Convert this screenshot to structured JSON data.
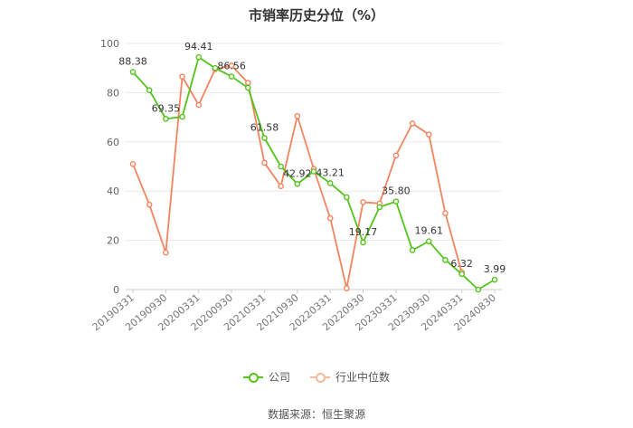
{
  "chart_data": {
    "type": "line",
    "title": "市销率历史分位（%）",
    "x_ticks": [
      "20190331",
      "20190930",
      "20200331",
      "20200930",
      "20210331",
      "20210930",
      "20220331",
      "20220930",
      "20230331",
      "20230930",
      "20240331",
      "20240830"
    ],
    "ylim": [
      0,
      100
    ],
    "y_ticks": [
      0,
      20,
      40,
      60,
      80,
      100
    ],
    "grid": true,
    "legend_position": "bottom",
    "series": [
      {
        "name": "公司",
        "color": "#52c41a",
        "values": [
          88.38,
          81,
          69.35,
          70.2,
          94.41,
          90,
          86.56,
          82,
          61.58,
          50,
          42.92,
          48,
          43.21,
          37.5,
          19.17,
          33.5,
          35.8,
          16,
          19.61,
          12,
          6.32,
          0,
          3.99
        ],
        "labels": {
          "0": "88.38",
          "2": "69.35",
          "4": "94.41",
          "6": "86.56",
          "8": "61.58",
          "10": "42.92",
          "12": "43.21",
          "14": "19.17",
          "16": "35.80",
          "18": "19.61",
          "20": "6.32",
          "22": "3.99"
        }
      },
      {
        "name": "行业中位数",
        "color": "#f4845f",
        "values": [
          51,
          34.5,
          15,
          86.5,
          75,
          89.5,
          91,
          84,
          51.5,
          42,
          70.5,
          49,
          29,
          0.5,
          35.5,
          35,
          54.5,
          67.5,
          63,
          31,
          7
        ]
      }
    ]
  },
  "source": "数据来源：恒生聚源"
}
